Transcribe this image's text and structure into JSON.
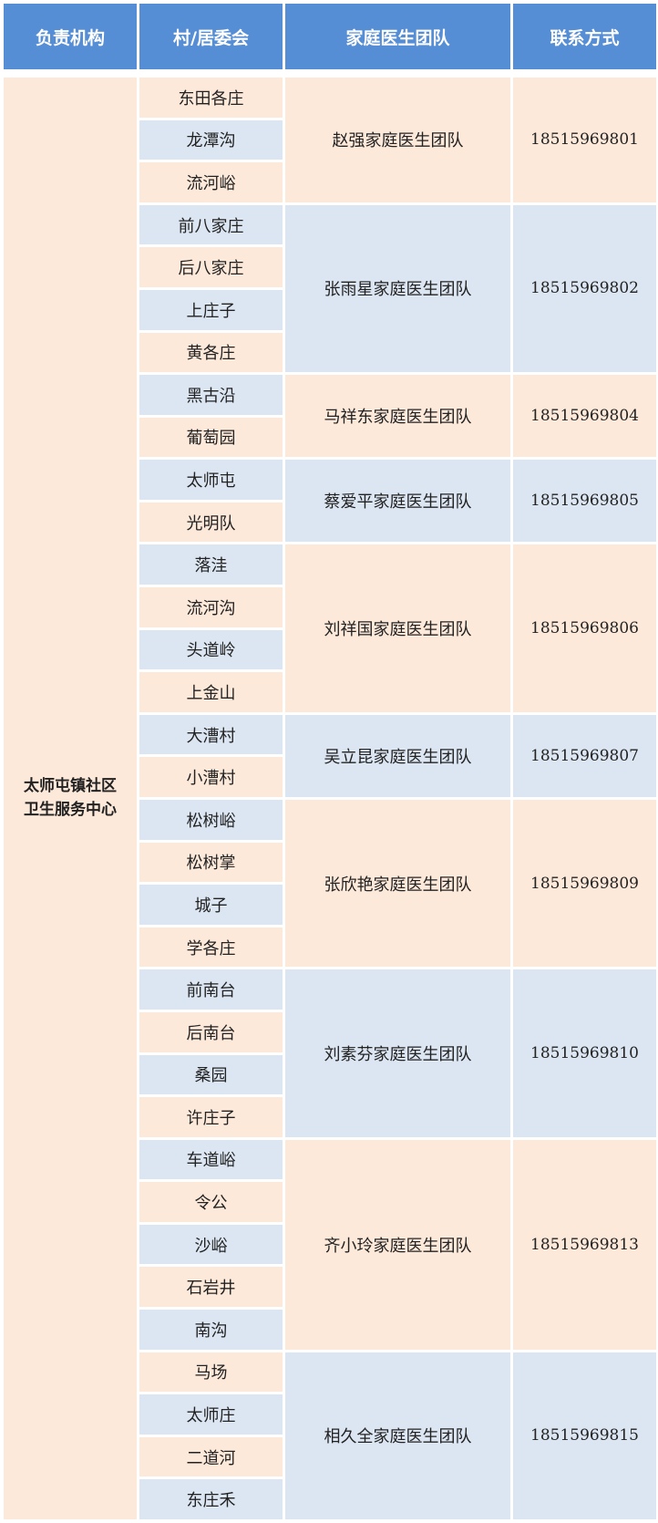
{
  "header": [
    "负责机构",
    "村/居委会",
    "家庭医生团队",
    "联系方式"
  ],
  "colors": {
    "header": "#558ED5",
    "peach": "#FDE9DA",
    "blue": "#DCE6F2"
  },
  "organization": {
    "line1": "太师屯镇社区",
    "line2": "卫生服务中心"
  },
  "groups": [
    {
      "team": "赵强家庭医生团队",
      "phone": "18515969801",
      "villages": [
        "东田各庄",
        "龙潭沟",
        "流河峪"
      ]
    },
    {
      "team": "张雨星家庭医生团队",
      "phone": "18515969802",
      "villages": [
        "前八家庄",
        "后八家庄",
        "上庄子",
        "黄各庄"
      ]
    },
    {
      "team": "马祥东家庭医生团队",
      "phone": "18515969804",
      "villages": [
        "黑古沿",
        "葡萄园"
      ]
    },
    {
      "team": "蔡爱平家庭医生团队",
      "phone": "18515969805",
      "villages": [
        "太师屯",
        "光明队"
      ]
    },
    {
      "team": "刘祥国家庭医生团队",
      "phone": "18515969806",
      "villages": [
        "落洼",
        "流河沟",
        "头道岭",
        "上金山"
      ]
    },
    {
      "team": "吴立昆家庭医生团队",
      "phone": "18515969807",
      "villages": [
        "大漕村",
        "小漕村"
      ]
    },
    {
      "team": "张欣艳家庭医生团队",
      "phone": "18515969809",
      "villages": [
        "松树峪",
        "松树掌",
        "城子",
        "学各庄"
      ]
    },
    {
      "team": "刘素芬家庭医生团队",
      "phone": "18515969810",
      "villages": [
        "前南台",
        "后南台",
        "桑园",
        "许庄子"
      ]
    },
    {
      "team": "齐小玲家庭医生团队",
      "phone": "18515969813",
      "villages": [
        "车道峪",
        "令公",
        "沙峪",
        "石岩井",
        "南沟"
      ]
    },
    {
      "team": "相久全家庭医生团队",
      "phone": "18515969815",
      "villages": [
        "马场",
        "太师庄",
        "二道河",
        "东庄禾"
      ]
    }
  ]
}
